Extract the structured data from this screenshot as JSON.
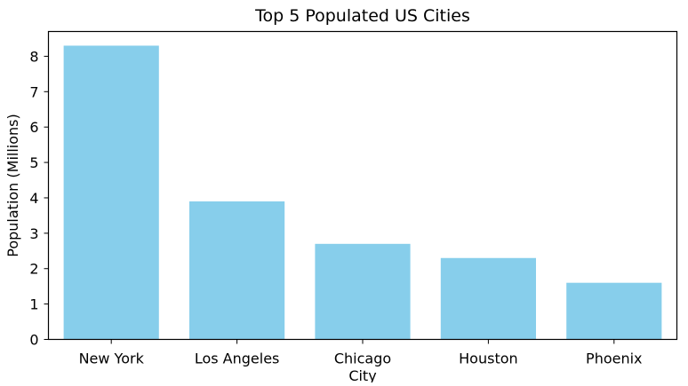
{
  "chart_data": {
    "type": "bar",
    "title": "Top 5 Populated US Cities",
    "xlabel": "City",
    "ylabel": "Population (Millions)",
    "categories": [
      "New York",
      "Los Angeles",
      "Chicago",
      "Houston",
      "Phoenix"
    ],
    "values": [
      8.3,
      3.9,
      2.7,
      2.3,
      1.6
    ],
    "ylim": [
      0,
      8.7
    ],
    "yticks": [
      0,
      1,
      2,
      3,
      4,
      5,
      6,
      7,
      8
    ],
    "bar_color": "#87ceeb",
    "grid": false,
    "legend": "none"
  }
}
